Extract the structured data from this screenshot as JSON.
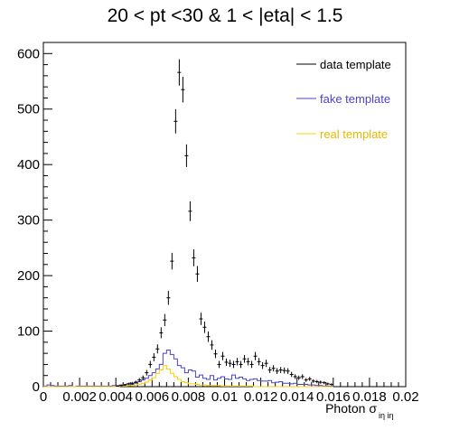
{
  "chart_data": {
    "type": "histogram",
    "title": "20 < pt <30 & 1 < |eta| < 1.5",
    "xlabel_main": "Photon σ",
    "xlabel_sub": "iη iη",
    "xlim": [
      0,
      0.02
    ],
    "ylim": [
      0,
      620
    ],
    "x_ticks": [
      0,
      0.002,
      0.004,
      0.006,
      0.008,
      0.01,
      0.012,
      0.014,
      0.016,
      0.018,
      0.02
    ],
    "x_tick_labels": [
      "0",
      "0.002",
      "0.004",
      "0.006",
      "0.008",
      "0.01",
      "0.012",
      "0.014",
      "0.016",
      "0.018",
      "0.02"
    ],
    "y_ticks": [
      0,
      100,
      200,
      300,
      400,
      500,
      600
    ],
    "y_tick_labels": [
      "0",
      "100",
      "200",
      "300",
      "400",
      "500",
      "600"
    ],
    "bin_width": 0.0002,
    "legend_position": "top-right",
    "series": [
      {
        "name": "data template",
        "style": "points-with-errors",
        "color": "#000000",
        "values": [
          0,
          0,
          0,
          0,
          0,
          0,
          0,
          0,
          0,
          0,
          0,
          0,
          0,
          0,
          0,
          0,
          0,
          0,
          0,
          0,
          1,
          2,
          3,
          5,
          6,
          8,
          12,
          16,
          25,
          40,
          53,
          68,
          97,
          120,
          160,
          226,
          478,
          566,
          535,
          416,
          316,
          232,
          203,
          122,
          107,
          90,
          75,
          59,
          40,
          55,
          44,
          42,
          40,
          45,
          40,
          50,
          45,
          40,
          55,
          45,
          38,
          42,
          30,
          33,
          28,
          30,
          29,
          28,
          22,
          18,
          16,
          18,
          12,
          14,
          10,
          9,
          8,
          7,
          5,
          4
        ]
      },
      {
        "name": "fake template",
        "style": "step",
        "color": "#4b42c8",
        "values": [
          1,
          3,
          2,
          1,
          1,
          1,
          1,
          2,
          0,
          1,
          1,
          1,
          1,
          1,
          1,
          1,
          1,
          1,
          1,
          2,
          2,
          3,
          4,
          5,
          4,
          7,
          9,
          12,
          15,
          20,
          25,
          32,
          40,
          60,
          66,
          58,
          50,
          38,
          34,
          25,
          30,
          28,
          17,
          21,
          15,
          13,
          20,
          12,
          15,
          18,
          14,
          13,
          21,
          15,
          17,
          14,
          11,
          13,
          14,
          11,
          10,
          10,
          11,
          7,
          8,
          9,
          6,
          6,
          5,
          6,
          4,
          4,
          4,
          3,
          3,
          2,
          2,
          1,
          1,
          1
        ]
      },
      {
        "name": "real template",
        "style": "step",
        "color": "#ffcc00",
        "values": [
          0,
          0,
          0,
          0,
          0,
          0,
          0,
          0,
          0,
          0,
          0,
          0,
          0,
          0,
          0,
          0,
          0,
          0,
          0,
          0,
          0,
          1,
          1,
          2,
          2,
          3,
          4,
          6,
          8,
          12,
          16,
          24,
          30,
          38,
          32,
          24,
          18,
          13,
          9,
          7,
          5,
          5,
          4,
          3,
          3,
          2,
          2,
          2,
          2,
          1,
          1,
          1,
          1,
          1,
          1,
          1,
          1,
          1,
          0,
          0,
          0,
          0,
          0,
          0,
          0,
          0,
          0,
          0,
          0,
          0,
          0,
          0,
          0,
          0,
          0,
          0,
          0,
          0,
          0,
          0
        ]
      }
    ]
  }
}
